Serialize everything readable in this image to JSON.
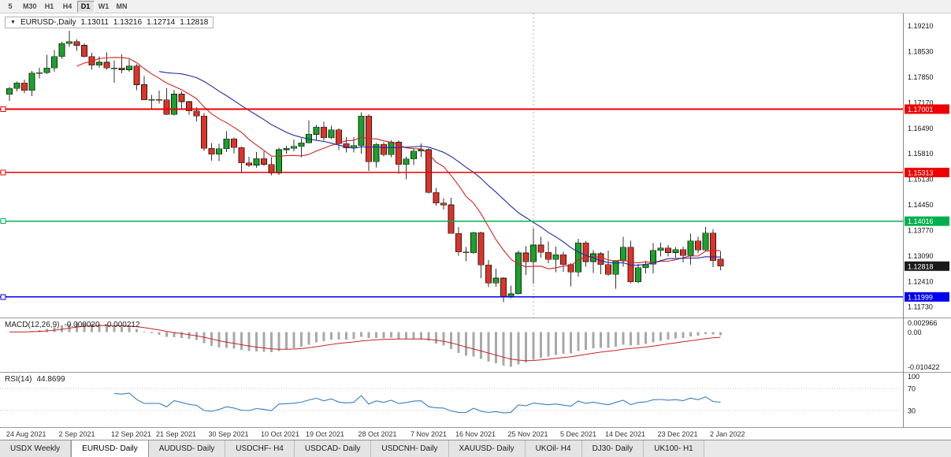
{
  "toolbar": {
    "periods": [
      {
        "label": "5",
        "active": false
      },
      {
        "label": "M30",
        "active": false
      },
      {
        "label": "H1",
        "active": false
      },
      {
        "label": "H4",
        "active": false
      },
      {
        "label": "D1",
        "active": true
      },
      {
        "label": "W1",
        "active": false
      },
      {
        "label": "MN",
        "active": false
      }
    ]
  },
  "window_title": {
    "symbol": "EURUSD-,Daily",
    "open": "1.13011",
    "high": "1.13216",
    "low": "1.12714",
    "close": "1.12818"
  },
  "chart_data": {
    "type": "candlestick",
    "title": "EURUSD-,Daily",
    "symbol": "EURUSD",
    "timeframe": "Daily",
    "y_range": {
      "top": 1.1955,
      "bottom": 1.1145
    },
    "dates": [
      "2021-08-24",
      "2021-08-25",
      "2021-08-26",
      "2021-08-27",
      "2021-08-30",
      "2021-08-31",
      "2021-09-01",
      "2021-09-02",
      "2021-09-03",
      "2021-09-06",
      "2021-09-07",
      "2021-09-08",
      "2021-09-09",
      "2021-09-10",
      "2021-09-13",
      "2021-09-14",
      "2021-09-15",
      "2021-09-16",
      "2021-09-17",
      "2021-09-20",
      "2021-09-21",
      "2021-09-22",
      "2021-09-23",
      "2021-09-24",
      "2021-09-27",
      "2021-09-28",
      "2021-09-29",
      "2021-09-30",
      "2021-10-01",
      "2021-10-04",
      "2021-10-05",
      "2021-10-06",
      "2021-10-07",
      "2021-10-08",
      "2021-10-11",
      "2021-10-12",
      "2021-10-13",
      "2021-10-14",
      "2021-10-15",
      "2021-10-18",
      "2021-10-19",
      "2021-10-20",
      "2021-10-21",
      "2021-10-22",
      "2021-10-25",
      "2021-10-26",
      "2021-10-27",
      "2021-10-28",
      "2021-10-29",
      "2021-11-01",
      "2021-11-02",
      "2021-11-03",
      "2021-11-04",
      "2021-11-05",
      "2021-11-08",
      "2021-11-09",
      "2021-11-10",
      "2021-11-11",
      "2021-11-12",
      "2021-11-15",
      "2021-11-16",
      "2021-11-17",
      "2021-11-18",
      "2021-11-19",
      "2021-11-22",
      "2021-11-23",
      "2021-11-24",
      "2021-11-25",
      "2021-11-26",
      "2021-11-29",
      "2021-11-30",
      "2021-12-01",
      "2021-12-02",
      "2021-12-03",
      "2021-12-06",
      "2021-12-07",
      "2021-12-08",
      "2021-12-09",
      "2021-12-10",
      "2021-12-13",
      "2021-12-14",
      "2021-12-15",
      "2021-12-16",
      "2021-12-17",
      "2021-12-20",
      "2021-12-21",
      "2021-12-22",
      "2021-12-23",
      "2021-12-24",
      "2021-12-27",
      "2021-12-28",
      "2021-12-29",
      "2021-12-30",
      "2021-12-31",
      "2022-01-03",
      "2022-01-04"
    ],
    "candles": [
      [
        1.1739,
        1.176,
        1.1722,
        1.1755
      ],
      [
        1.1755,
        1.1774,
        1.1747,
        1.177
      ],
      [
        1.177,
        1.1779,
        1.1742,
        1.175
      ],
      [
        1.175,
        1.1802,
        1.1735,
        1.1796
      ],
      [
        1.1796,
        1.181,
        1.1782,
        1.1797
      ],
      [
        1.1797,
        1.1845,
        1.1793,
        1.181
      ],
      [
        1.181,
        1.1857,
        1.18,
        1.184
      ],
      [
        1.184,
        1.1879,
        1.1834,
        1.1875
      ],
      [
        1.1875,
        1.1909,
        1.1866,
        1.188
      ],
      [
        1.188,
        1.1886,
        1.1855,
        1.187
      ],
      [
        1.187,
        1.1875,
        1.1838,
        1.184
      ],
      [
        1.184,
        1.185,
        1.1805,
        1.1817
      ],
      [
        1.1817,
        1.1841,
        1.181,
        1.1825
      ],
      [
        1.1825,
        1.1851,
        1.1805,
        1.181
      ],
      [
        1.181,
        1.183,
        1.177,
        1.181
      ],
      [
        1.181,
        1.1846,
        1.1795,
        1.1805
      ],
      [
        1.1805,
        1.1832,
        1.18,
        1.1815
      ],
      [
        1.1815,
        1.182,
        1.175,
        1.1765
      ],
      [
        1.1765,
        1.1788,
        1.1724,
        1.1725
      ],
      [
        1.1725,
        1.1738,
        1.17,
        1.1726
      ],
      [
        1.1726,
        1.1749,
        1.1715,
        1.1725
      ],
      [
        1.1725,
        1.1756,
        1.1684,
        1.1686
      ],
      [
        1.1686,
        1.1751,
        1.1683,
        1.174
      ],
      [
        1.174,
        1.1747,
        1.1701,
        1.172
      ],
      [
        1.172,
        1.1722,
        1.1685,
        1.1695
      ],
      [
        1.1695,
        1.1705,
        1.1667,
        1.1682
      ],
      [
        1.1682,
        1.169,
        1.1589,
        1.1596
      ],
      [
        1.1596,
        1.161,
        1.1563,
        1.158
      ],
      [
        1.158,
        1.1608,
        1.1562,
        1.1595
      ],
      [
        1.1595,
        1.1641,
        1.1586,
        1.1621
      ],
      [
        1.1621,
        1.1625,
        1.1581,
        1.1598
      ],
      [
        1.1598,
        1.16,
        1.1529,
        1.1557
      ],
      [
        1.1557,
        1.1573,
        1.1546,
        1.1551
      ],
      [
        1.1551,
        1.1586,
        1.1544,
        1.1568
      ],
      [
        1.1568,
        1.1588,
        1.1549,
        1.1553
      ],
      [
        1.1553,
        1.1572,
        1.1524,
        1.153
      ],
      [
        1.153,
        1.1597,
        1.1525,
        1.1592
      ],
      [
        1.1592,
        1.1602,
        1.1582,
        1.1596
      ],
      [
        1.1596,
        1.1619,
        1.1588,
        1.1601
      ],
      [
        1.1601,
        1.1622,
        1.1572,
        1.161
      ],
      [
        1.161,
        1.167,
        1.1609,
        1.1633
      ],
      [
        1.1633,
        1.1658,
        1.1617,
        1.1652
      ],
      [
        1.1652,
        1.1666,
        1.1616,
        1.1624
      ],
      [
        1.1624,
        1.1656,
        1.162,
        1.1645
      ],
      [
        1.1645,
        1.1649,
        1.1591,
        1.1608
      ],
      [
        1.1608,
        1.1626,
        1.1585,
        1.1597
      ],
      [
        1.1597,
        1.1626,
        1.1585,
        1.1603
      ],
      [
        1.1603,
        1.1692,
        1.1582,
        1.1682
      ],
      [
        1.1682,
        1.1686,
        1.1535,
        1.156
      ],
      [
        1.156,
        1.161,
        1.1545,
        1.1606
      ],
      [
        1.1606,
        1.1612,
        1.1574,
        1.1579
      ],
      [
        1.1579,
        1.1617,
        1.1572,
        1.1612
      ],
      [
        1.1612,
        1.1617,
        1.1528,
        1.1553
      ],
      [
        1.1553,
        1.1573,
        1.1513,
        1.1567
      ],
      [
        1.1567,
        1.1596,
        1.1551,
        1.1588
      ],
      [
        1.1588,
        1.1609,
        1.1572,
        1.1592
      ],
      [
        1.1592,
        1.1596,
        1.1476,
        1.1478
      ],
      [
        1.1478,
        1.149,
        1.1443,
        1.145
      ],
      [
        1.145,
        1.1463,
        1.1433,
        1.1445
      ],
      [
        1.1445,
        1.1464,
        1.1368,
        1.1369
      ],
      [
        1.1369,
        1.1386,
        1.131,
        1.132
      ],
      [
        1.132,
        1.1333,
        1.1295,
        1.1318
      ],
      [
        1.1318,
        1.1374,
        1.1314,
        1.1371
      ],
      [
        1.1371,
        1.1374,
        1.125,
        1.1285
      ],
      [
        1.1285,
        1.1298,
        1.1226,
        1.1237
      ],
      [
        1.1237,
        1.1275,
        1.1227,
        1.125
      ],
      [
        1.125,
        1.1252,
        1.1186,
        1.12
      ],
      [
        1.12,
        1.123,
        1.1196,
        1.1208
      ],
      [
        1.1208,
        1.1323,
        1.1206,
        1.1317
      ],
      [
        1.1317,
        1.1335,
        1.1258,
        1.1293
      ],
      [
        1.1293,
        1.1383,
        1.1235,
        1.1338
      ],
      [
        1.1338,
        1.136,
        1.1304,
        1.1319
      ],
      [
        1.1319,
        1.1348,
        1.129,
        1.13
      ],
      [
        1.13,
        1.1334,
        1.1266,
        1.1312
      ],
      [
        1.1312,
        1.132,
        1.1267,
        1.1286
      ],
      [
        1.1286,
        1.129,
        1.1228,
        1.1266
      ],
      [
        1.1266,
        1.1355,
        1.1254,
        1.1344
      ],
      [
        1.1344,
        1.1349,
        1.128,
        1.1294
      ],
      [
        1.1294,
        1.1324,
        1.1264,
        1.1315
      ],
      [
        1.1315,
        1.1319,
        1.126,
        1.1286
      ],
      [
        1.1286,
        1.1323,
        1.1256,
        1.126
      ],
      [
        1.126,
        1.1298,
        1.1222,
        1.1296
      ],
      [
        1.1296,
        1.136,
        1.128,
        1.1332
      ],
      [
        1.1332,
        1.135,
        1.1236,
        1.124
      ],
      [
        1.124,
        1.1288,
        1.1236,
        1.1278
      ],
      [
        1.1278,
        1.1296,
        1.1262,
        1.1287
      ],
      [
        1.1287,
        1.1343,
        1.1262,
        1.1324
      ],
      [
        1.1324,
        1.1344,
        1.1308,
        1.133
      ],
      [
        1.133,
        1.1338,
        1.1308,
        1.1318
      ],
      [
        1.1318,
        1.1333,
        1.1304,
        1.1326
      ],
      [
        1.1326,
        1.1334,
        1.1292,
        1.131
      ],
      [
        1.131,
        1.1369,
        1.1286,
        1.1349
      ],
      [
        1.1349,
        1.136,
        1.1316,
        1.1325
      ],
      [
        1.1325,
        1.1386,
        1.1321,
        1.137
      ],
      [
        1.137,
        1.138,
        1.1279,
        1.1297
      ],
      [
        1.13011,
        1.13216,
        1.12714,
        1.12818
      ]
    ],
    "candle_colors": {
      "up": "#18a428",
      "down": "#e03226",
      "wick": "#333333"
    },
    "x_axis_labels": [
      {
        "label": "24 Aug 2021",
        "index": 0
      },
      {
        "label": "2 Sep 2021",
        "index": 7
      },
      {
        "label": "12 Sep 2021",
        "index": 14
      },
      {
        "label": "21 Sep 2021",
        "index": 20
      },
      {
        "label": "30 Sep 2021",
        "index": 27
      },
      {
        "label": "10 Oct 2021",
        "index": 34
      },
      {
        "label": "19 Oct 2021",
        "index": 40
      },
      {
        "label": "28 Oct 2021",
        "index": 47
      },
      {
        "label": "7 Nov 2021",
        "index": 54
      },
      {
        "label": "16 Nov 2021",
        "index": 60
      },
      {
        "label": "25 Nov 2021",
        "index": 67
      },
      {
        "label": "5 Dec 2021",
        "index": 74
      },
      {
        "label": "14 Dec 2021",
        "index": 80
      },
      {
        "label": "23 Dec 2021",
        "index": 87
      },
      {
        "label": "2 Jan 2022",
        "index": 94
      }
    ],
    "y_axis_labels": [
      "1.19210",
      "1.18530",
      "1.17850",
      "1.17170",
      "1.16490",
      "1.15810",
      "1.15130",
      "1.14450",
      "1.13770",
      "1.13090",
      "1.12410",
      "1.11730"
    ],
    "moving_averages": [
      {
        "type": "sma",
        "period": 10,
        "color": "#cf2525"
      },
      {
        "type": "sma",
        "period": 21,
        "color": "#1f2d9e"
      }
    ],
    "horizontal_lines": [
      {
        "price": 1.17001,
        "label": "1.17001",
        "color": "#ee0000"
      },
      {
        "price": 1.15313,
        "label": "1.15313",
        "color": "#ee0000"
      },
      {
        "price": 1.14016,
        "label": "1.14016",
        "color": "#00b050"
      },
      {
        "price": 1.11999,
        "label": "1.11999",
        "color": "#0000ee"
      }
    ],
    "current_price": {
      "value": 1.12818,
      "label": "1.12818",
      "bg": "#1a1a1a"
    },
    "vertical_line_index": 70,
    "indicators": {
      "macd": {
        "name": "MACD(12,26,9)",
        "fast": 12,
        "slow": 26,
        "signal": 9,
        "value_main": "-0.000020",
        "value_signal": "-0.000212",
        "axis_labels": {
          "top": "0.002966",
          "zero": "0.00",
          "bottom": "-0.010422"
        },
        "histogram_color": "#a8a8a8",
        "signal_color": "#cc2222"
      },
      "rsi": {
        "name": "RSI(14)",
        "period": 14,
        "value": "44.8699",
        "levels": [
          70,
          30
        ],
        "axis_labels": [
          "100",
          "70",
          "30"
        ],
        "line_color": "#3a7ebf"
      }
    }
  },
  "tabs": {
    "items": [
      {
        "label": "USDX Weekly",
        "active": false
      },
      {
        "label": "EURUSD- Daily",
        "active": true
      },
      {
        "label": "AUDUSD- Daily",
        "active": false
      },
      {
        "label": "USDCHF- H4",
        "active": false
      },
      {
        "label": "USDCAD- Daily",
        "active": false
      },
      {
        "label": "USDCNH- Daily",
        "active": false
      },
      {
        "label": "XAUUSD- Daily",
        "active": false
      },
      {
        "label": "UKOil- H4",
        "active": false
      },
      {
        "label": "DJ30- Daily",
        "active": false
      },
      {
        "label": "UK100- H1",
        "active": false
      }
    ]
  }
}
